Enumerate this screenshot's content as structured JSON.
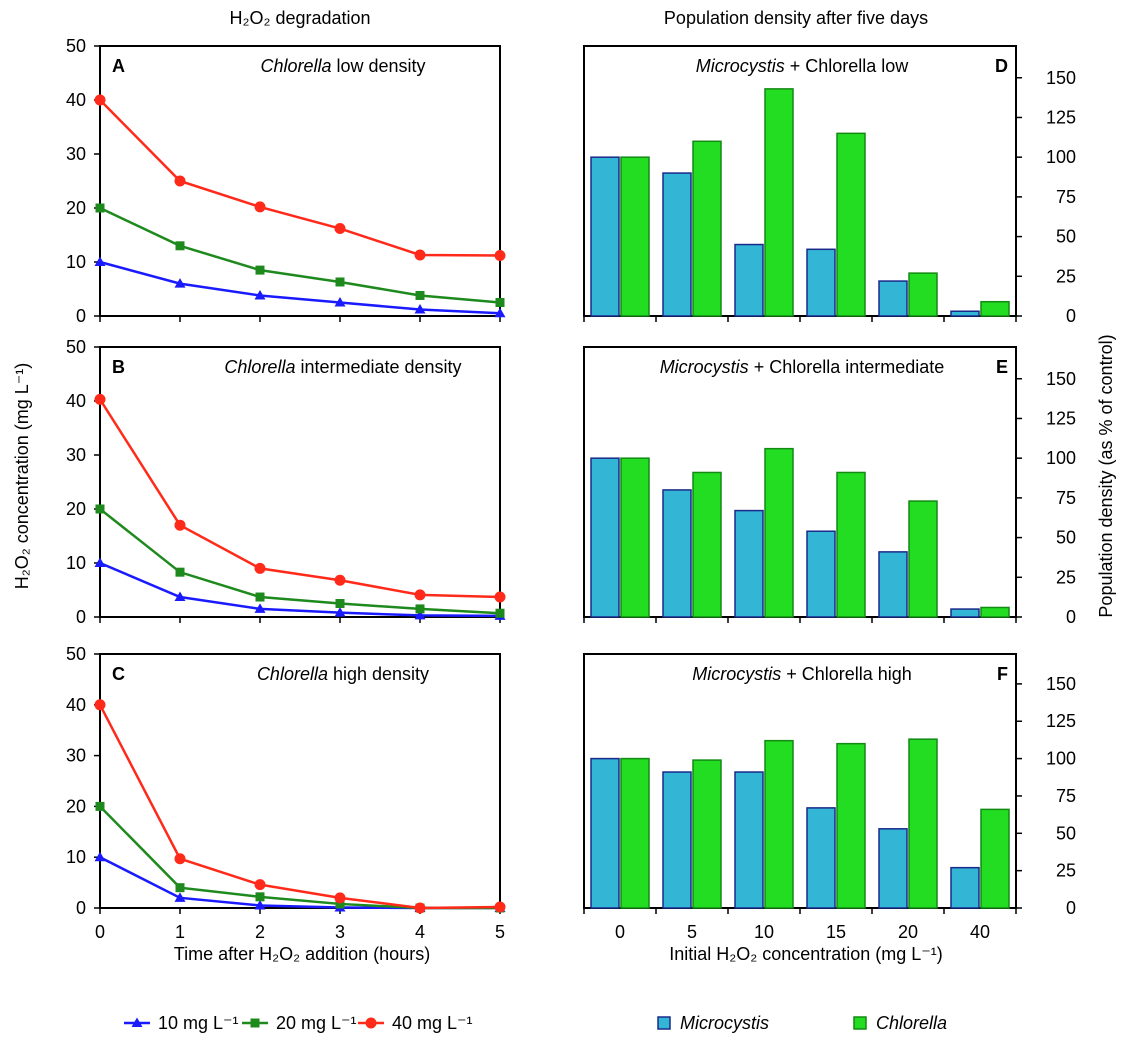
{
  "headings": {
    "left_column_title": "H₂O₂ degradation",
    "right_column_title": "Population density after five days"
  },
  "axes": {
    "left_y_label": "H₂O₂ concentration (mg L⁻¹)",
    "right_y_label": "Population density (as % of control)",
    "left_x_label": "Time after H₂O₂ addition (hours)",
    "right_x_label": "Initial H₂O₂ concentration (mg L⁻¹)"
  },
  "legend_left": [
    {
      "label": "10 mg L⁻¹",
      "color": "#1a1aff",
      "marker": "triangle"
    },
    {
      "label": "20 mg L⁻¹",
      "color": "#1e8a1e",
      "marker": "square"
    },
    {
      "label": "40 mg L⁻¹",
      "color": "#ff2a1a",
      "marker": "circle"
    }
  ],
  "legend_right": [
    {
      "label": "Microcystis",
      "color": "#33b5d6",
      "italic": true
    },
    {
      "label": "Chlorella",
      "color": "#22dd22",
      "italic": true
    }
  ],
  "chart_data": [
    {
      "type": "line",
      "panel": "A",
      "title_italic": "Chlorella",
      "title_rest": " low density",
      "x": [
        0,
        1,
        2,
        3,
        4,
        5
      ],
      "xlim": [
        0,
        5
      ],
      "ylim": [
        0,
        50
      ],
      "yticks": [
        0,
        10,
        20,
        30,
        40,
        50
      ],
      "series": [
        {
          "name": "10 mg L⁻¹",
          "color": "#1a1aff",
          "marker": "triangle",
          "values": [
            10,
            6,
            3.8,
            2.5,
            1.2,
            0.5
          ]
        },
        {
          "name": "20 mg L⁻¹",
          "color": "#1e8a1e",
          "marker": "square",
          "values": [
            20,
            13,
            8.5,
            6.3,
            3.8,
            2.5
          ]
        },
        {
          "name": "40 mg L⁻¹",
          "color": "#ff2a1a",
          "marker": "circle",
          "values": [
            40,
            25,
            20.2,
            16.2,
            11.3,
            11.2
          ]
        }
      ]
    },
    {
      "type": "line",
      "panel": "B",
      "title_italic": "Chlorella",
      "title_rest": " intermediate density",
      "x": [
        0,
        1,
        2,
        3,
        4,
        5
      ],
      "xlim": [
        0,
        5
      ],
      "ylim": [
        0,
        50
      ],
      "yticks": [
        0,
        10,
        20,
        30,
        40,
        50
      ],
      "series": [
        {
          "name": "10 mg L⁻¹",
          "color": "#1a1aff",
          "marker": "triangle",
          "values": [
            10,
            3.7,
            1.5,
            0.8,
            0.3,
            0.2
          ]
        },
        {
          "name": "20 mg L⁻¹",
          "color": "#1e8a1e",
          "marker": "square",
          "values": [
            20,
            8.3,
            3.7,
            2.5,
            1.5,
            0.7
          ]
        },
        {
          "name": "40 mg L⁻¹",
          "color": "#ff2a1a",
          "marker": "circle",
          "values": [
            40.3,
            17,
            9,
            6.8,
            4.1,
            3.7
          ]
        }
      ]
    },
    {
      "type": "line",
      "panel": "C",
      "title_italic": "Chlorella",
      "title_rest": " high density",
      "x": [
        0,
        1,
        2,
        3,
        4,
        5
      ],
      "xlim": [
        0,
        5
      ],
      "ylim": [
        0,
        50
      ],
      "yticks": [
        0,
        10,
        20,
        30,
        40,
        50
      ],
      "xticks": [
        0,
        1,
        2,
        3,
        4,
        5
      ],
      "series": [
        {
          "name": "10 mg L⁻¹",
          "color": "#1a1aff",
          "marker": "triangle",
          "values": [
            10,
            2,
            0.5,
            0.1,
            0,
            0
          ]
        },
        {
          "name": "20 mg L⁻¹",
          "color": "#1e8a1e",
          "marker": "square",
          "values": [
            20,
            4,
            2.2,
            0.8,
            0,
            0
          ]
        },
        {
          "name": "40 mg L⁻¹",
          "color": "#ff2a1a",
          "marker": "circle",
          "values": [
            40,
            9.7,
            4.6,
            2,
            0,
            0.2
          ]
        }
      ]
    },
    {
      "type": "bar",
      "panel": "D",
      "title_italic": "Microcystis",
      "title_rest": " + Chlorella low",
      "categories": [
        "0",
        "5",
        "10",
        "15",
        "20",
        "40"
      ],
      "ylim": [
        0,
        170
      ],
      "yticks": [
        0,
        25,
        50,
        75,
        100,
        125,
        150
      ],
      "series": [
        {
          "name": "Microcystis",
          "color": "#33b5d6",
          "values": [
            100,
            90,
            45,
            42,
            22,
            3
          ]
        },
        {
          "name": "Chlorella",
          "color": "#22dd22",
          "values": [
            100,
            110,
            143,
            115,
            27,
            9
          ]
        }
      ]
    },
    {
      "type": "bar",
      "panel": "E",
      "title_italic": "Microcystis",
      "title_rest": " + Chlorella intermediate",
      "categories": [
        "0",
        "5",
        "10",
        "15",
        "20",
        "40"
      ],
      "ylim": [
        0,
        170
      ],
      "yticks": [
        0,
        25,
        50,
        75,
        100,
        125,
        150
      ],
      "series": [
        {
          "name": "Microcystis",
          "color": "#33b5d6",
          "values": [
            100,
            80,
            67,
            54,
            41,
            5
          ]
        },
        {
          "name": "Chlorella",
          "color": "#22dd22",
          "values": [
            100,
            91,
            106,
            91,
            73,
            6
          ]
        }
      ]
    },
    {
      "type": "bar",
      "panel": "F",
      "title_italic": "Microcystis",
      "title_rest": " + Chlorella high",
      "categories": [
        "0",
        "5",
        "10",
        "15",
        "20",
        "40"
      ],
      "ylim": [
        0,
        170
      ],
      "yticks": [
        0,
        25,
        50,
        75,
        100,
        125,
        150
      ],
      "series": [
        {
          "name": "Microcystis",
          "color": "#33b5d6",
          "values": [
            100,
            91,
            91,
            67,
            53,
            27
          ]
        },
        {
          "name": "Chlorella",
          "color": "#22dd22",
          "values": [
            100,
            99,
            112,
            110,
            113,
            66
          ]
        }
      ]
    }
  ]
}
